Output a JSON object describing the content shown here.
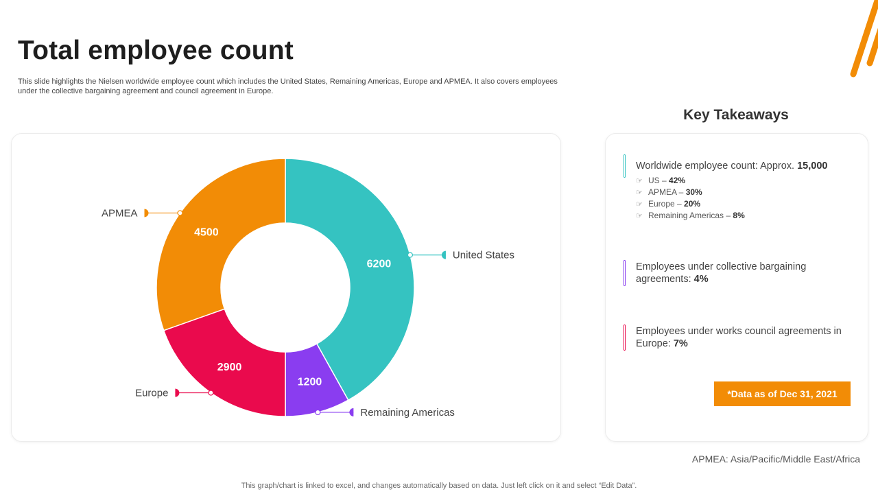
{
  "page": {
    "title": "Total employee count",
    "subtitle": "This slide highlights the Nielsen worldwide employee count which includes the United States, Remaining Americas, Europe and APMEA.  It also covers employees under the collective bargaining agreement and council agreement in Europe.",
    "footnote": "APMEA: Asia/Pacific/Middle  East/Africa",
    "bottom_note": "This graph/chart is linked to excel,  and changes automatically based on data. Just left click on it and select “Edit Data”."
  },
  "colors": {
    "accent": "#f28c06",
    "united_states": "#35c3c1",
    "remaining_americas": "#8a3df0",
    "europe": "#ea0a4d",
    "apmea": "#f28c06"
  },
  "chart_data": {
    "type": "pie",
    "donut": true,
    "title": "",
    "slices": [
      {
        "label": "United States",
        "value": 6200,
        "color": "#35c3c1"
      },
      {
        "label": "Remaining Americas",
        "value": 1200,
        "color": "#8a3df0"
      },
      {
        "label": "Europe",
        "value": 2900,
        "color": "#ea0a4d"
      },
      {
        "label": "APMEA",
        "value": 4500,
        "color": "#f28c06"
      }
    ]
  },
  "takeaways": {
    "title": "Key Takeaways",
    "items": [
      {
        "text": "Worldwide employee count: Approx.",
        "value": "15,000",
        "color": "#35c3c1",
        "sub": [
          {
            "label": "US –",
            "value": "42%"
          },
          {
            "label": "APMEA –",
            "value": "30%"
          },
          {
            "label": "Europe –",
            "value": "20%"
          },
          {
            "label": "Remaining  Americas –",
            "value": "8%"
          }
        ]
      },
      {
        "text": "Employees under collective bargaining agreements:",
        "value": "4%",
        "color": "#8a3df0"
      },
      {
        "text": "Employees under works council agreements in Europe:",
        "value": "7%",
        "color": "#ea0a4d"
      }
    ],
    "as_of": "*Data as of Dec 31, 2021"
  }
}
